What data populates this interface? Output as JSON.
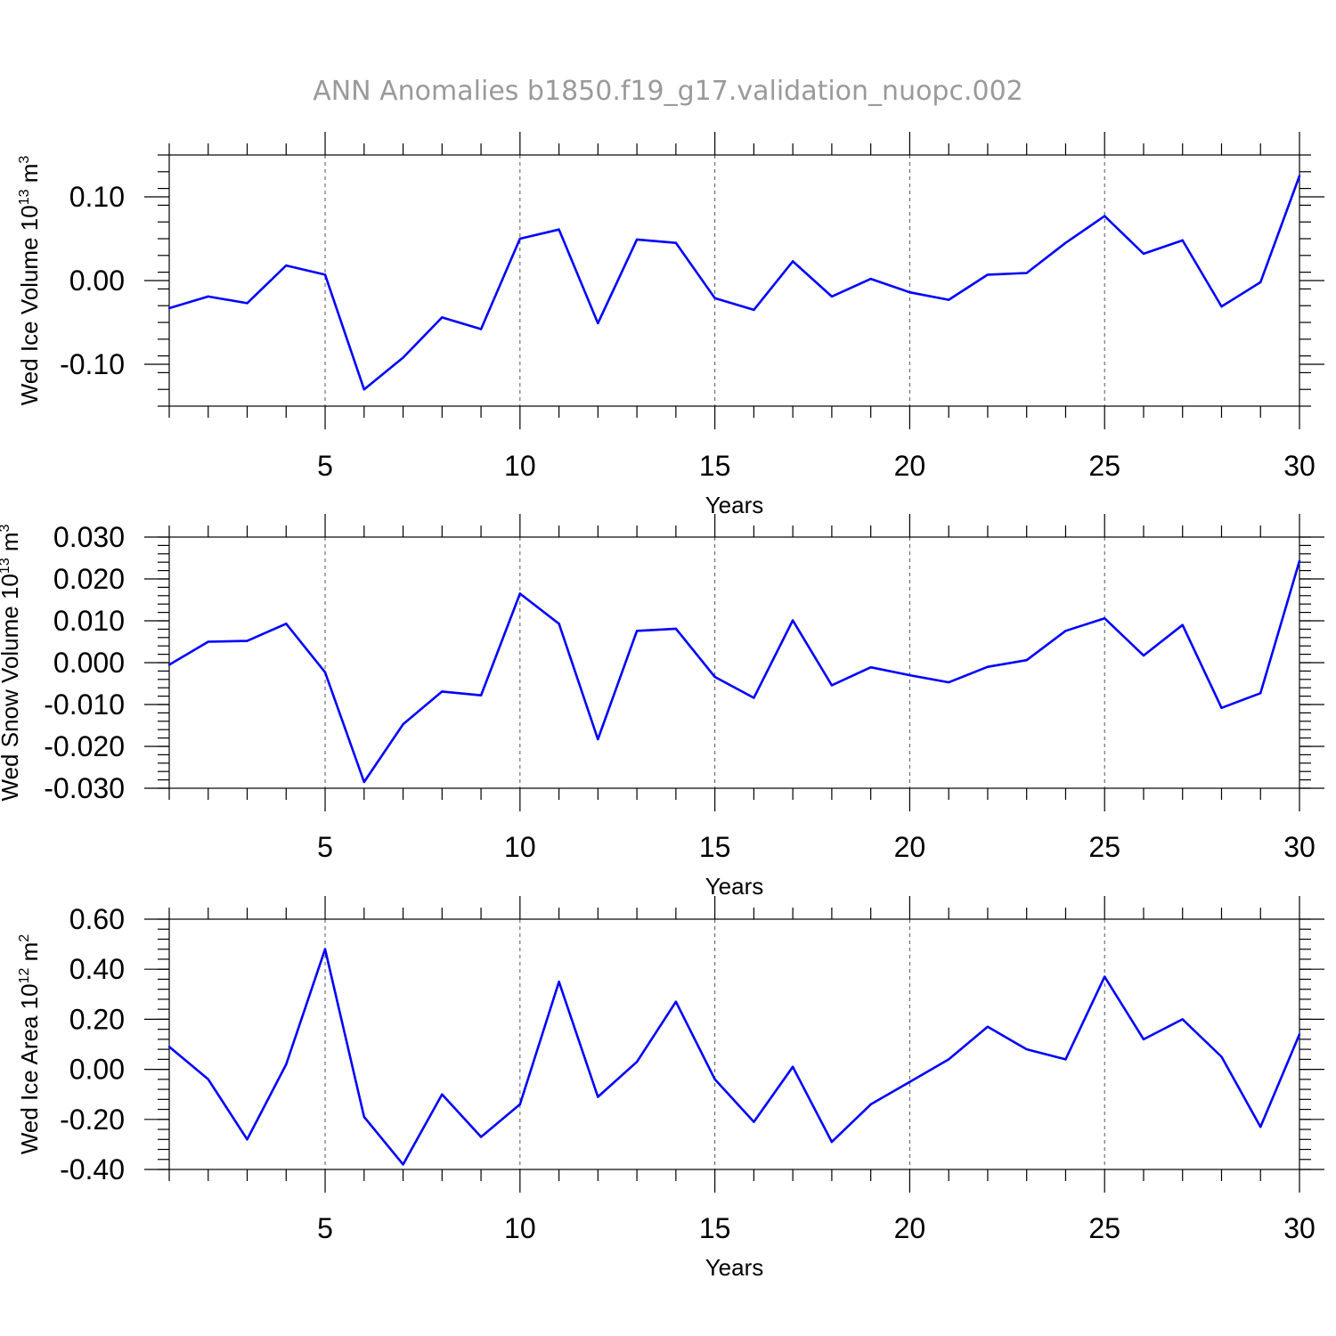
{
  "page": {
    "title": "ANN Anomalies b1850.f19_g17.validation_nuopc.002"
  },
  "colors": {
    "series": "#0000ff",
    "title": "#9a9a9a"
  },
  "chart_data": [
    {
      "type": "line",
      "xlabel": "Years",
      "ylabel_main": "Wed Ice Volume 10",
      "ylabel_exp": "13",
      "ylabel_unit": " m",
      "ylabel_unit_exp": "3",
      "xlim": [
        1,
        30
      ],
      "ylim": [
        -0.15,
        0.15
      ],
      "xticks": [
        5,
        10,
        15,
        20,
        25,
        30
      ],
      "yticks": [
        -0.1,
        0.0,
        0.1
      ],
      "ytick_labels": [
        "-0.10",
        "0.00",
        "0.10"
      ],
      "y_minor_step": 0.02,
      "grid_x": [
        5,
        10,
        15,
        20,
        25
      ],
      "x": [
        1,
        2,
        3,
        4,
        5,
        6,
        7,
        8,
        9,
        10,
        11,
        12,
        13,
        14,
        15,
        16,
        17,
        18,
        19,
        20,
        21,
        22,
        23,
        24,
        25,
        26,
        27,
        28,
        29,
        30
      ],
      "values": [
        -0.033,
        -0.019,
        -0.027,
        0.018,
        0.007,
        -0.13,
        -0.092,
        -0.044,
        -0.058,
        0.05,
        0.061,
        -0.051,
        0.049,
        0.045,
        -0.021,
        -0.035,
        0.023,
        -0.019,
        0.002,
        -0.014,
        -0.023,
        0.007,
        0.009,
        0.045,
        0.077,
        0.032,
        0.048,
        -0.031,
        -0.002,
        0.125
      ]
    },
    {
      "type": "line",
      "xlabel": "Years",
      "ylabel_main": "Wed Snow Volume 10",
      "ylabel_exp": "13",
      "ylabel_unit": " m",
      "ylabel_unit_exp": "3",
      "xlim": [
        1,
        30
      ],
      "ylim": [
        -0.03,
        0.03
      ],
      "xticks": [
        5,
        10,
        15,
        20,
        25,
        30
      ],
      "yticks": [
        -0.03,
        -0.02,
        -0.01,
        0.0,
        0.01,
        0.02,
        0.03
      ],
      "ytick_labels": [
        "-0.030",
        "-0.020",
        "-0.010",
        "0.000",
        "0.010",
        "0.020",
        "0.030"
      ],
      "y_minor_step": 0.002,
      "grid_x": [
        5,
        10,
        15,
        20,
        25
      ],
      "x": [
        1,
        2,
        3,
        4,
        5,
        6,
        7,
        8,
        9,
        10,
        11,
        12,
        13,
        14,
        15,
        16,
        17,
        18,
        19,
        20,
        21,
        22,
        23,
        24,
        25,
        26,
        27,
        28,
        29,
        30
      ],
      "values": [
        -0.0005,
        0.005,
        0.0052,
        0.0093,
        -0.0023,
        -0.0285,
        -0.0147,
        -0.0069,
        -0.0078,
        0.0165,
        0.0093,
        -0.0183,
        0.0076,
        0.0081,
        -0.0034,
        -0.0084,
        0.0101,
        -0.0054,
        -0.0011,
        -0.003,
        -0.0047,
        -0.001,
        0.0006,
        0.0076,
        0.0106,
        0.0017,
        0.009,
        -0.0108,
        -0.0073,
        0.0243
      ]
    },
    {
      "type": "line",
      "xlabel": "Years",
      "ylabel_main": "Wed Ice Area 10",
      "ylabel_exp": "12",
      "ylabel_unit": " m",
      "ylabel_unit_exp": "2",
      "xlim": [
        1,
        30
      ],
      "ylim": [
        -0.4,
        0.6
      ],
      "xticks": [
        5,
        10,
        15,
        20,
        25,
        30
      ],
      "yticks": [
        -0.4,
        -0.2,
        0.0,
        0.2,
        0.4,
        0.6
      ],
      "ytick_labels": [
        "-0.40",
        "-0.20",
        "0.00",
        "0.20",
        "0.40",
        "0.60"
      ],
      "y_minor_step": 0.04,
      "grid_x": [
        5,
        10,
        15,
        20,
        25
      ],
      "x": [
        1,
        2,
        3,
        4,
        5,
        6,
        7,
        8,
        9,
        10,
        11,
        12,
        13,
        14,
        15,
        16,
        17,
        18,
        19,
        20,
        21,
        22,
        23,
        24,
        25,
        26,
        27,
        28,
        29,
        30
      ],
      "values": [
        0.09,
        -0.04,
        -0.28,
        0.02,
        0.48,
        -0.19,
        -0.38,
        -0.1,
        -0.27,
        -0.14,
        0.35,
        -0.11,
        0.03,
        0.27,
        -0.04,
        -0.21,
        0.01,
        -0.29,
        -0.14,
        -0.05,
        0.04,
        0.17,
        0.08,
        0.04,
        0.37,
        0.12,
        0.2,
        0.05,
        -0.23,
        0.14
      ]
    }
  ]
}
